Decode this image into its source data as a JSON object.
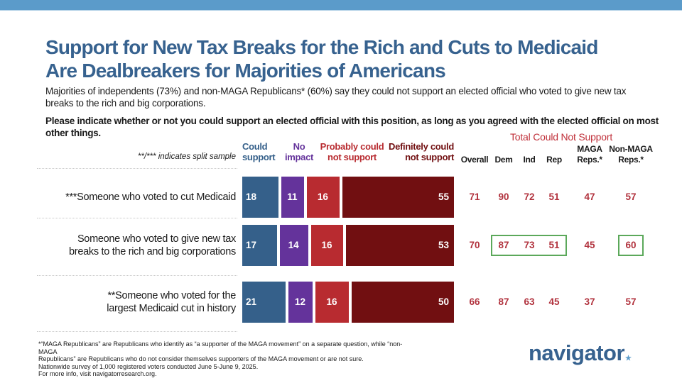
{
  "header": {
    "title_line1": "Support for New Tax Breaks for the Rich and Cuts to Medicaid",
    "title_line2": "Are Dealbreakers for Majorities of Americans",
    "subtitle": "Majorities of independents (73%) and non-MAGA Republicans* (60%) say they could not support an elected official who voted to give new tax breaks to the rich and big corporations.",
    "question": "Please indicate whether or not you could support an elected official with this position, as long as you agreed with the elected official on most other things."
  },
  "colors": {
    "could_support": "#35608a",
    "no_impact": "#64339b",
    "probably_not": "#b82b30",
    "definitely_not": "#710f11",
    "numbers": "#b1323d",
    "highlight": "#5ba85a",
    "brand": "#37628f"
  },
  "chart_data": {
    "type": "bar",
    "orientation": "horizontal-stacked",
    "title": "Support for New Tax Breaks for the Rich and Cuts to Medicaid Are Dealbreakers for Majorities of Americans",
    "note": "**/*** indicates split sample",
    "categories": [
      "***Someone who voted to cut Medicaid",
      "Someone who voted to give new tax breaks to the rich and big corporations",
      "**Someone who voted for the largest Medicaid cut in history"
    ],
    "category_lines": [
      [
        "***Someone who voted to cut Medicaid"
      ],
      [
        "Someone who voted to give new tax",
        "breaks to the rich and big corporations"
      ],
      [
        "**Someone who voted for the",
        "largest Medicaid cut in history"
      ]
    ],
    "series": [
      {
        "name": "Could support",
        "legend_lines": [
          "Could",
          "support"
        ],
        "values": [
          18,
          17,
          21
        ]
      },
      {
        "name": "No impact",
        "legend_lines": [
          "No",
          "impact"
        ],
        "values": [
          11,
          14,
          12
        ]
      },
      {
        "name": "Probably could not support",
        "legend_lines": [
          "Probably could",
          "not support"
        ],
        "values": [
          16,
          16,
          16
        ]
      },
      {
        "name": "Definitely could not support",
        "legend_lines": [
          "Definitely could",
          "not support"
        ],
        "values": [
          55,
          53,
          50
        ]
      }
    ],
    "legend_placement": "top",
    "xlim": [
      0,
      100
    ],
    "table": {
      "title": "Total Could Not Support",
      "columns": [
        {
          "key": "overall",
          "lines": [
            "Overall"
          ]
        },
        {
          "key": "dem",
          "lines": [
            "Dem"
          ]
        },
        {
          "key": "ind",
          "lines": [
            "Ind"
          ]
        },
        {
          "key": "rep",
          "lines": [
            "Rep"
          ]
        },
        {
          "key": "maga",
          "lines": [
            "MAGA",
            "Reps.*"
          ]
        },
        {
          "key": "nonmaga",
          "lines": [
            "Non-MAGA",
            "Reps.*"
          ]
        }
      ],
      "rows": [
        [
          71,
          90,
          72,
          51,
          47,
          57
        ],
        [
          70,
          87,
          73,
          51,
          45,
          60
        ],
        [
          66,
          87,
          63,
          45,
          37,
          57
        ]
      ],
      "highlighted": [
        {
          "row": 1,
          "columns": [
            "dem",
            "ind",
            "rep"
          ]
        },
        {
          "row": 1,
          "columns": [
            "nonmaga"
          ]
        }
      ]
    }
  },
  "footer": {
    "footnote_lines": [
      "*“MAGA Republicans” are Republicans who identify as “a supporter of the MAGA movement” on a separate question, while “non-MAGA",
      "Republicans” are Republicans who do not consider themselves supporters of the MAGA movement or are not sure.",
      "Nationwide survey of 1,000 registered voters conducted June 5-June 9, 2025.",
      "For more info, visit navigatorresearch.org."
    ],
    "logo_text": "navigator",
    "logo_mark": "."
  }
}
